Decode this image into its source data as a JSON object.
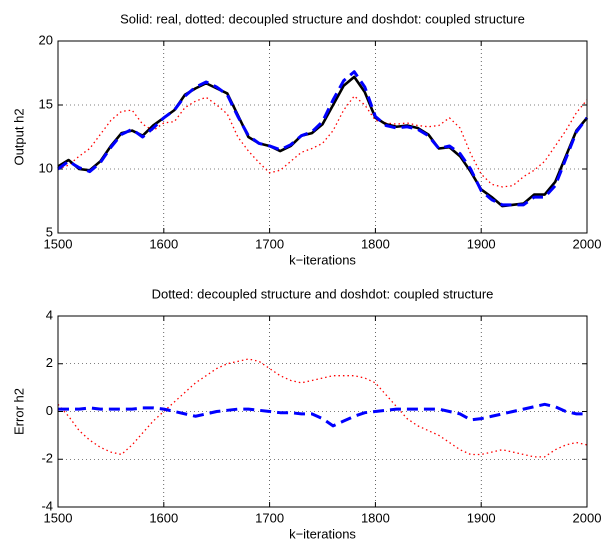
{
  "chart_data": [
    {
      "type": "line",
      "title": "Solid: real, dotted: decoupled structure and doshdot: coupled structure",
      "xlabel": "k−iterations",
      "ylabel": "Output h2",
      "x": [
        1500,
        1510,
        1520,
        1530,
        1540,
        1550,
        1560,
        1570,
        1580,
        1590,
        1600,
        1610,
        1620,
        1630,
        1640,
        1650,
        1660,
        1670,
        1680,
        1690,
        1700,
        1710,
        1720,
        1730,
        1740,
        1750,
        1760,
        1770,
        1780,
        1790,
        1800,
        1810,
        1820,
        1830,
        1840,
        1850,
        1860,
        1870,
        1880,
        1890,
        1900,
        1910,
        1920,
        1930,
        1940,
        1950,
        1960,
        1970,
        1980,
        1990,
        2000
      ],
      "series": [
        {
          "color": "#ff0000",
          "style": "dotted",
          "values": [
            10.0,
            10.3,
            11.0,
            11.6,
            12.7,
            13.8,
            14.5,
            14.6,
            13.5,
            13.0,
            13.6,
            13.7,
            14.8,
            15.3,
            15.6,
            15.0,
            14.3,
            12.5,
            11.4,
            10.5,
            9.7,
            9.9,
            10.6,
            11.3,
            11.6,
            12.0,
            13.0,
            14.6,
            15.7,
            15.0,
            13.8,
            13.6,
            13.5,
            13.6,
            13.4,
            13.3,
            13.4,
            14.0,
            13.2,
            11.2,
            9.6,
            8.8,
            8.6,
            8.7,
            9.4,
            9.9,
            10.6,
            11.8,
            13.0,
            14.4,
            15.4
          ]
        },
        {
          "color": "#000000",
          "style": "solid",
          "values": [
            10.2,
            10.7,
            10.0,
            9.9,
            10.6,
            11.8,
            12.8,
            13.0,
            12.6,
            13.4,
            14.0,
            14.6,
            15.8,
            16.3,
            16.7,
            16.3,
            15.9,
            14.2,
            12.5,
            12.0,
            11.8,
            11.4,
            11.8,
            12.6,
            12.8,
            13.5,
            15.0,
            16.5,
            17.2,
            16.0,
            14.0,
            13.5,
            13.3,
            13.4,
            13.2,
            12.7,
            11.6,
            11.7,
            11.0,
            9.8,
            8.4,
            7.8,
            7.1,
            7.2,
            7.3,
            8.0,
            8.0,
            9.0,
            11.0,
            13.0,
            14.0
          ]
        },
        {
          "color": "#0000ff",
          "style": "dashed",
          "values": [
            10.0,
            10.6,
            10.1,
            9.8,
            10.5,
            11.7,
            12.7,
            13.1,
            12.5,
            13.2,
            14.0,
            14.6,
            15.7,
            16.4,
            16.8,
            16.4,
            15.8,
            14.1,
            12.6,
            12.0,
            11.8,
            11.5,
            11.9,
            12.6,
            12.9,
            13.7,
            15.4,
            16.9,
            17.6,
            16.4,
            14.1,
            13.4,
            13.2,
            13.3,
            13.1,
            12.6,
            11.6,
            11.8,
            11.2,
            10.0,
            8.3,
            7.6,
            7.2,
            7.2,
            7.2,
            7.8,
            7.8,
            8.7,
            10.8,
            12.9,
            14.0
          ]
        }
      ],
      "xlim": [
        1500,
        2000
      ],
      "xticks": [
        1500,
        1600,
        1700,
        1800,
        1900,
        2000
      ],
      "ylim": [
        5,
        20
      ],
      "yticks": [
        5,
        10,
        15,
        20
      ],
      "grid": true
    },
    {
      "type": "line",
      "title": "Dotted: decoupled structure and doshdot: coupled structure",
      "xlabel": "k−iterations",
      "ylabel": "Error h2",
      "x": [
        1500,
        1510,
        1520,
        1530,
        1540,
        1550,
        1560,
        1570,
        1580,
        1590,
        1600,
        1610,
        1620,
        1630,
        1640,
        1650,
        1660,
        1670,
        1680,
        1690,
        1700,
        1710,
        1720,
        1730,
        1740,
        1750,
        1760,
        1770,
        1780,
        1790,
        1800,
        1810,
        1820,
        1830,
        1840,
        1850,
        1860,
        1870,
        1880,
        1890,
        1900,
        1910,
        1920,
        1930,
        1940,
        1950,
        1960,
        1970,
        1980,
        1990,
        2000
      ],
      "series": [
        {
          "color": "#ff0000",
          "style": "dotted",
          "values": [
            0.3,
            -0.2,
            -0.8,
            -1.2,
            -1.5,
            -1.7,
            -1.8,
            -1.4,
            -0.9,
            -0.4,
            0.0,
            0.4,
            0.8,
            1.2,
            1.5,
            1.8,
            2.0,
            2.1,
            2.2,
            2.1,
            1.8,
            1.5,
            1.3,
            1.2,
            1.3,
            1.4,
            1.5,
            1.5,
            1.5,
            1.4,
            1.2,
            0.7,
            0.2,
            -0.3,
            -0.6,
            -0.8,
            -1.0,
            -1.3,
            -1.6,
            -1.8,
            -1.8,
            -1.7,
            -1.6,
            -1.7,
            -1.8,
            -1.9,
            -1.9,
            -1.6,
            -1.4,
            -1.3,
            -1.4
          ]
        },
        {
          "color": "#0000ff",
          "style": "dashed",
          "values": [
            0.1,
            0.1,
            0.1,
            0.15,
            0.1,
            0.1,
            0.1,
            0.1,
            0.15,
            0.15,
            0.1,
            0.0,
            -0.1,
            -0.2,
            -0.1,
            0.0,
            0.05,
            0.1,
            0.1,
            0.05,
            0.0,
            -0.05,
            -0.05,
            -0.1,
            -0.1,
            -0.3,
            -0.6,
            -0.4,
            -0.2,
            -0.05,
            0.0,
            0.05,
            0.1,
            0.1,
            0.1,
            0.1,
            0.1,
            0.0,
            -0.1,
            -0.35,
            -0.3,
            -0.2,
            -0.1,
            0.0,
            0.1,
            0.2,
            0.3,
            0.2,
            0.0,
            -0.1,
            -0.1
          ]
        }
      ],
      "xlim": [
        1500,
        2000
      ],
      "xticks": [
        1500,
        1600,
        1700,
        1800,
        1900,
        2000
      ],
      "ylim": [
        -4,
        4
      ],
      "yticks": [
        -4,
        -2,
        0,
        2,
        4
      ],
      "grid": true
    }
  ]
}
